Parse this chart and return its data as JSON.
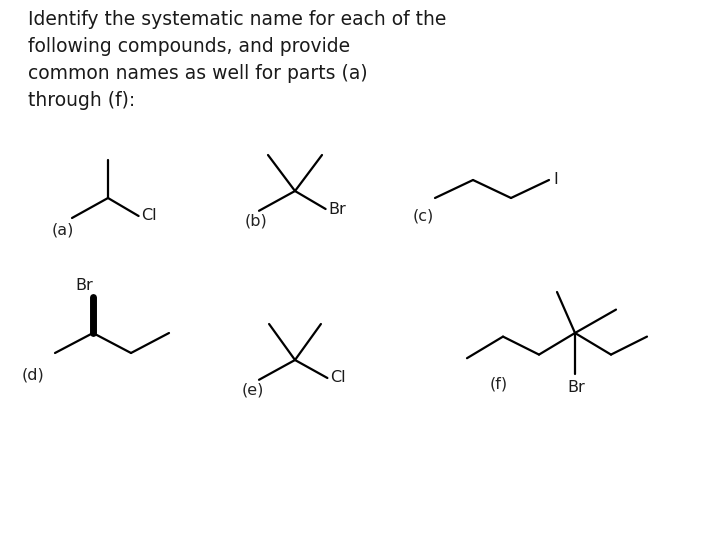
{
  "title_lines": [
    "Identify the systematic name for each of the",
    "following compounds, and provide",
    "common names as well for parts (a)",
    "through (f):"
  ],
  "bg_color": "#ffffff",
  "text_color": "#1a1a1a",
  "label_color": "#222222",
  "title_fontsize": 13.5,
  "label_fontsize": 11.5,
  "halogen_fontsize": 11.5,
  "lw": 1.6
}
